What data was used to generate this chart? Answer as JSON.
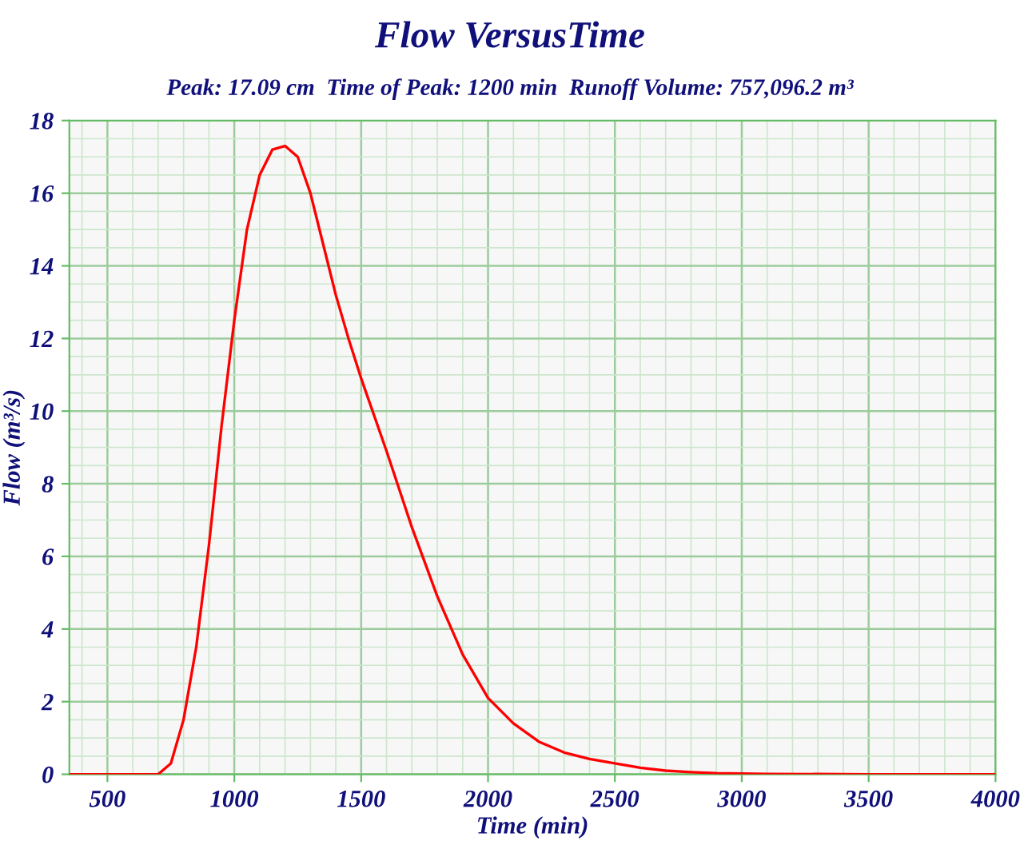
{
  "chart_data": {
    "type": "line",
    "title": "Flow VersusTime",
    "subtitle": "Peak: 17.09 cm  Time of Peak: 1200 min  Runoff Volume: 757,096.2 m³",
    "xlabel": "Time (min)",
    "ylabel": "Flow (m³/s)",
    "x": [
      350,
      500,
      600,
      700,
      750,
      800,
      850,
      900,
      950,
      1000,
      1050,
      1100,
      1150,
      1200,
      1250,
      1300,
      1350,
      1400,
      1450,
      1500,
      1600,
      1700,
      1800,
      1900,
      2000,
      2100,
      2200,
      2300,
      2400,
      2500,
      2600,
      2700,
      2800,
      2900,
      3000,
      3100,
      3500,
      4000
    ],
    "series": [
      {
        "color": "#ff0000",
        "values": [
          0,
          0,
          0,
          0,
          0.3,
          1.5,
          3.5,
          6.3,
          9.6,
          12.5,
          15.0,
          16.5,
          17.2,
          17.3,
          17.0,
          16.0,
          14.6,
          13.2,
          12.0,
          10.9,
          8.9,
          6.8,
          4.9,
          3.3,
          2.1,
          1.4,
          0.9,
          0.6,
          0.42,
          0.3,
          0.18,
          0.1,
          0.06,
          0.03,
          0.02,
          0.01,
          0,
          0
        ]
      }
    ],
    "xlim": [
      350,
      4000
    ],
    "ylim": [
      0,
      18
    ],
    "xticks": [
      500,
      1000,
      1500,
      2000,
      2500,
      3000,
      3500,
      4000
    ],
    "yticks": [
      0,
      2,
      4,
      6,
      8,
      10,
      12,
      14,
      16,
      18
    ],
    "grid": true,
    "line_style": "solid"
  }
}
